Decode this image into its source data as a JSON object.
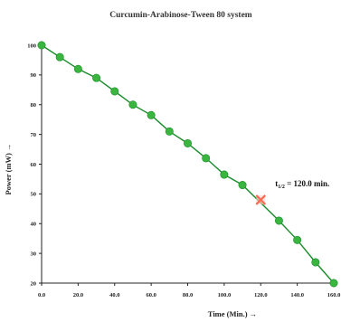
{
  "chart_data": {
    "type": "line",
    "title": "Curcumin-Arabinose-Tween 80 system",
    "xlabel": "Time (Min.) →",
    "ylabel": "Power (mW) →",
    "xlim": [
      0,
      160
    ],
    "ylim": [
      20,
      100
    ],
    "x_ticks": [
      "0.0",
      "20.0",
      "40.0",
      "60.0",
      "80.0",
      "100.0",
      "120.0",
      "140.0",
      "160.0"
    ],
    "y_ticks": [
      "20",
      "30",
      "40",
      "50",
      "60",
      "70",
      "80",
      "90",
      "100"
    ],
    "x_tick_values": [
      0,
      20,
      40,
      60,
      80,
      100,
      120,
      140,
      160
    ],
    "y_tick_values": [
      20,
      30,
      40,
      50,
      60,
      70,
      80,
      90,
      100
    ],
    "grid": false,
    "legend": "none",
    "series": [
      {
        "x": [
          0,
          10,
          20,
          30,
          40,
          50,
          60,
          70,
          80,
          90,
          100,
          110,
          130,
          140,
          150,
          160
        ],
        "values": [
          100,
          96,
          92,
          89,
          84.5,
          80,
          76.5,
          71,
          67,
          62,
          56.5,
          53,
          41,
          34.5,
          27,
          20
        ],
        "color": "#1a8c2a"
      }
    ],
    "annotation": {
      "x": 120,
      "y": 48,
      "text_main": "t",
      "text_sub": "1/2",
      "text_rest": " = 120.0 min.",
      "marker_color": "#ff6a55"
    },
    "colors": {
      "line": "#1a8c2a",
      "marker_fill": "#3ab53f",
      "axis": "#222222"
    }
  }
}
